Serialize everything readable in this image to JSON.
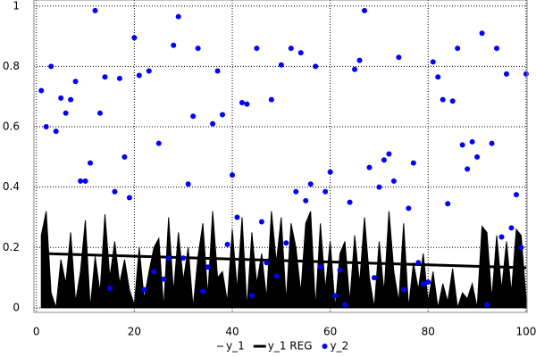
{
  "chart_data": {
    "type": "area_scatter",
    "x": [
      1,
      2,
      3,
      4,
      5,
      6,
      7,
      8,
      9,
      10,
      11,
      12,
      13,
      14,
      15,
      16,
      17,
      18,
      19,
      20,
      21,
      22,
      23,
      24,
      25,
      26,
      27,
      28,
      29,
      30,
      31,
      32,
      33,
      34,
      35,
      36,
      37,
      38,
      39,
      40,
      41,
      42,
      43,
      44,
      45,
      46,
      47,
      48,
      49,
      50,
      51,
      52,
      53,
      54,
      55,
      56,
      57,
      58,
      59,
      60,
      61,
      62,
      63,
      64,
      65,
      66,
      67,
      68,
      69,
      70,
      71,
      72,
      73,
      74,
      75,
      76,
      77,
      78,
      79,
      80,
      81,
      82,
      83,
      84,
      85,
      86,
      87,
      88,
      89,
      90,
      91,
      92,
      93,
      94,
      95,
      96,
      97,
      98,
      99,
      100
    ],
    "series": [
      {
        "name": "y_1",
        "color": "#000000",
        "kind": "area",
        "values": [
          0.24,
          0.32,
          0.05,
          0.0,
          0.16,
          0.08,
          0.25,
          0.02,
          0.12,
          0.29,
          0.0,
          0.17,
          0.05,
          0.31,
          0.1,
          0.22,
          0.08,
          0.16,
          0.06,
          0.01,
          0.2,
          0.03,
          0.12,
          0.2,
          0.23,
          0.0,
          0.3,
          0.05,
          0.25,
          0.09,
          0.2,
          0.0,
          0.17,
          0.28,
          0.04,
          0.32,
          0.1,
          0.12,
          0.02,
          0.26,
          0.06,
          0.3,
          0.0,
          0.25,
          0.08,
          0.18,
          0.03,
          0.32,
          0.15,
          0.3,
          0.02,
          0.28,
          0.2,
          0.05,
          0.28,
          0.32,
          0.0,
          0.28,
          0.06,
          0.22,
          0.0,
          0.18,
          0.22,
          0.02,
          0.24,
          0.08,
          0.3,
          0.1,
          0.0,
          0.22,
          0.05,
          0.32,
          0.12,
          0.02,
          0.28,
          0.0,
          0.15,
          0.06,
          0.18,
          0.02,
          0.12,
          0.0,
          0.08,
          0.02,
          0.13,
          0.0,
          0.05,
          0.03,
          0.08,
          0.0,
          0.27,
          0.25,
          0.03,
          0.24,
          0.06,
          0.22,
          0.05,
          0.26,
          0.24,
          0.03
        ]
      },
      {
        "name": "y_1 REG",
        "color": "#000000",
        "kind": "line",
        "x": [
          1,
          100
        ],
        "values": [
          0.18,
          0.133
        ]
      },
      {
        "name": "y_2",
        "color": "#0000ff",
        "kind": "scatter",
        "values": [
          0.72,
          0.6,
          0.8,
          0.585,
          0.695,
          0.645,
          0.69,
          0.75,
          0.42,
          0.42,
          0.48,
          0.985,
          0.645,
          0.765,
          0.065,
          0.385,
          0.76,
          0.5,
          0.365,
          0.895,
          0.77,
          0.06,
          0.785,
          0.12,
          0.545,
          0.095,
          0.165,
          0.87,
          0.965,
          0.165,
          0.41,
          0.635,
          0.86,
          0.055,
          0.135,
          0.61,
          0.785,
          0.64,
          0.21,
          0.44,
          0.3,
          0.68,
          0.675,
          0.04,
          0.86,
          0.285,
          0.15,
          0.69,
          0.105,
          0.805,
          0.215,
          0.86,
          0.385,
          0.845,
          0.355,
          0.41,
          0.8,
          0.135,
          0.385,
          0.45,
          0.04,
          0.125,
          0.01,
          0.35,
          0.79,
          0.82,
          0.985,
          0.465,
          0.1,
          0.4,
          0.49,
          0.51,
          0.42,
          0.83,
          0.06,
          0.33,
          0.48,
          0.15,
          0.08,
          0.085,
          0.815,
          0.765,
          0.69,
          0.345,
          0.685,
          0.86,
          0.54,
          0.46,
          0.55,
          0.5,
          0.91,
          0.01,
          0.545,
          0.86,
          0.235,
          0.775,
          0.265,
          0.375,
          0.2,
          0.775
        ]
      }
    ],
    "xlim": [
      -0.5,
      100.2
    ],
    "ylim": [
      -0.015,
      1.02
    ],
    "xticks": [
      0,
      20,
      40,
      60,
      80,
      100
    ],
    "yticks": [
      0,
      0.2,
      0.4,
      0.6,
      0.8,
      1
    ],
    "grid": true,
    "legend": "bottom"
  }
}
